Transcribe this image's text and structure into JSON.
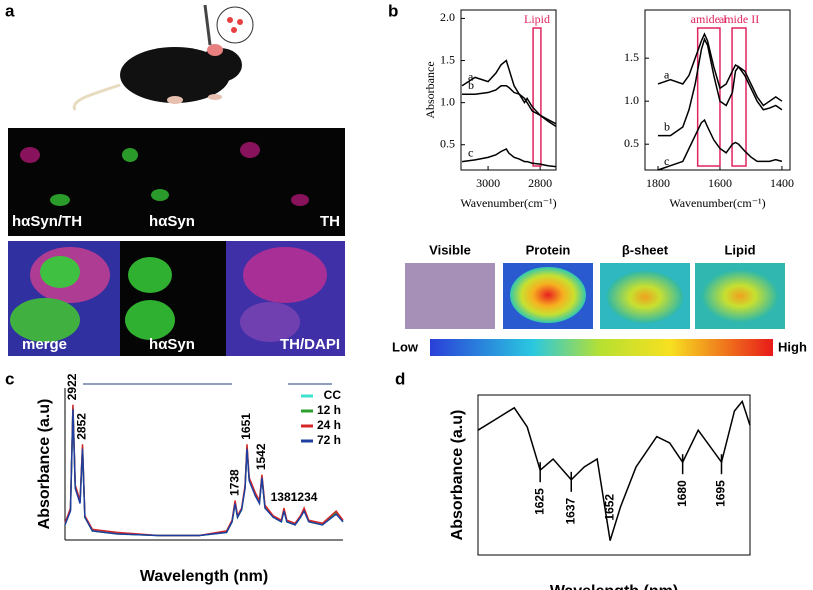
{
  "panel_labels": [
    "a",
    "b",
    "c",
    "d"
  ],
  "microscopy": {
    "top_row": [
      "hαSyn/TH",
      "hαSyn",
      "TH"
    ],
    "bottom_row": [
      "merge",
      "hαSyn",
      "TH/DAPI"
    ]
  },
  "ir_maps": {
    "titles": [
      "Visible",
      "Protein",
      "β-sheet",
      "Lipid"
    ],
    "scale_low": "Low",
    "scale_high": "High"
  },
  "chart_data": [
    {
      "type": "line",
      "xlabel": "Wavenumber(cm⁻¹)",
      "ylabel": "Absorbance",
      "x": [
        3100,
        3050,
        3000,
        2970,
        2950,
        2930,
        2920,
        2900,
        2880,
        2860,
        2850,
        2830,
        2800,
        2770,
        2740
      ],
      "xlim": [
        3104,
        2739
      ],
      "xticks": [
        3000,
        2800
      ],
      "ylim": [
        0.2,
        2.1
      ],
      "yticks": [
        0.5,
        {
          "value": 1,
          "label": "1.0"
        },
        1.5,
        {
          "value": 2,
          "label": "2.0"
        }
      ],
      "regions": [
        {
          "label": "Lipid",
          "range": [
            2827,
            2797
          ],
          "color": "#e0245e"
        }
      ],
      "series": [
        {
          "name": "a",
          "color": "#000000",
          "values": [
            1.2,
            1.3,
            1.25,
            1.35,
            1.45,
            1.5,
            1.4,
            1.2,
            1.1,
            1.0,
            1.05,
            0.95,
            0.85,
            0.8,
            0.75
          ]
        },
        {
          "name": "b",
          "color": "#000000",
          "values": [
            1.1,
            1.1,
            1.12,
            1.15,
            1.2,
            1.2,
            1.18,
            1.12,
            1.1,
            1.05,
            1.0,
            0.9,
            0.85,
            0.78,
            0.72
          ]
        },
        {
          "name": "c",
          "color": "#000000",
          "values": [
            0.3,
            0.32,
            0.35,
            0.38,
            0.42,
            0.45,
            0.4,
            0.35,
            0.33,
            0.3,
            0.3,
            0.28,
            0.27,
            0.25,
            0.24
          ]
        }
      ]
    },
    {
      "type": "line",
      "xlabel": "Wavenumber(cm⁻¹)",
      "x": [
        1800,
        1760,
        1720,
        1700,
        1680,
        1660,
        1650,
        1640,
        1620,
        1600,
        1580,
        1560,
        1550,
        1540,
        1520,
        1500,
        1480,
        1460,
        1440,
        1420,
        1400
      ],
      "xlim": [
        1842,
        1374
      ],
      "xticks": [
        1800,
        1600,
        1400
      ],
      "ylim": [
        0.2,
        2.06
      ],
      "yticks": [
        0.5,
        {
          "value": 1,
          "label": "1.0"
        },
        1.5
      ],
      "regions": [
        {
          "label": "amide I",
          "range": [
            1672,
            1600
          ],
          "color": "#e0245e"
        },
        {
          "label": "amide II",
          "range": [
            1561,
            1516
          ],
          "color": "#e0245e"
        }
      ],
      "series": [
        {
          "name": "a",
          "color": "#000000",
          "values": [
            1.2,
            1.25,
            1.2,
            1.3,
            1.5,
            1.7,
            1.78,
            1.7,
            1.4,
            1.15,
            1.2,
            1.35,
            1.42,
            1.4,
            1.35,
            1.2,
            1.05,
            0.95,
            1.0,
            1.05,
            1.0
          ]
        },
        {
          "name": "b",
          "color": "#000000",
          "values": [
            0.6,
            0.6,
            0.7,
            0.9,
            1.2,
            1.6,
            1.72,
            1.65,
            1.3,
            1.0,
            0.95,
            1.1,
            1.35,
            1.4,
            1.3,
            1.15,
            1.0,
            0.9,
            0.92,
            0.95,
            0.9
          ]
        },
        {
          "name": "c",
          "color": "#000000",
          "values": [
            0.2,
            0.25,
            0.3,
            0.45,
            0.6,
            0.75,
            0.78,
            0.7,
            0.55,
            0.45,
            0.4,
            0.5,
            0.52,
            0.5,
            0.42,
            0.35,
            0.3,
            0.3,
            0.3,
            0.32,
            0.3
          ]
        }
      ]
    },
    {
      "type": "line",
      "xlabel": "Wavelength (nm)",
      "ylabel": "Absorbance (a.u)",
      "legend": "top-right",
      "x": [
        2980,
        2940,
        2922,
        2905,
        2870,
        2852,
        2835,
        2780,
        2600,
        2300,
        2000,
        1800,
        1760,
        1738,
        1720,
        1690,
        1665,
        1651,
        1635,
        1590,
        1560,
        1542,
        1520,
        1460,
        1400,
        1381,
        1360,
        1300,
        1260,
        1234,
        1200,
        1100,
        1000,
        950
      ],
      "xlim": [
        2980,
        950
      ],
      "ylim": [
        0,
        1
      ],
      "peaks": [
        2922,
        2852,
        1738,
        1651,
        1542,
        1381,
        1234
      ],
      "series": [
        {
          "name": "CC",
          "color": "#40e0d0",
          "values": [
            0.1,
            0.2,
            0.88,
            0.35,
            0.25,
            0.62,
            0.15,
            0.06,
            0.04,
            0.03,
            0.03,
            0.05,
            0.12,
            0.25,
            0.15,
            0.2,
            0.35,
            0.62,
            0.4,
            0.3,
            0.25,
            0.42,
            0.22,
            0.15,
            0.12,
            0.2,
            0.12,
            0.1,
            0.15,
            0.2,
            0.12,
            0.1,
            0.18,
            0.12
          ]
        },
        {
          "name": "12 h",
          "color": "#2ca02c",
          "values": [
            0.1,
            0.2,
            0.87,
            0.34,
            0.25,
            0.61,
            0.15,
            0.06,
            0.04,
            0.03,
            0.03,
            0.05,
            0.12,
            0.24,
            0.15,
            0.2,
            0.35,
            0.61,
            0.4,
            0.3,
            0.25,
            0.41,
            0.22,
            0.15,
            0.12,
            0.2,
            0.12,
            0.1,
            0.15,
            0.2,
            0.12,
            0.1,
            0.18,
            0.12
          ]
        },
        {
          "name": "24 h",
          "color": "#d62728",
          "values": [
            0.11,
            0.21,
            0.89,
            0.36,
            0.26,
            0.63,
            0.16,
            0.07,
            0.05,
            0.03,
            0.03,
            0.06,
            0.13,
            0.26,
            0.16,
            0.21,
            0.36,
            0.63,
            0.41,
            0.31,
            0.26,
            0.43,
            0.23,
            0.16,
            0.13,
            0.21,
            0.13,
            0.11,
            0.16,
            0.21,
            0.13,
            0.11,
            0.19,
            0.13
          ]
        },
        {
          "name": "72 h",
          "color": "#1f3fa0",
          "values": [
            0.1,
            0.19,
            0.86,
            0.34,
            0.24,
            0.6,
            0.15,
            0.06,
            0.04,
            0.03,
            0.03,
            0.05,
            0.12,
            0.24,
            0.15,
            0.2,
            0.34,
            0.6,
            0.39,
            0.29,
            0.24,
            0.41,
            0.21,
            0.15,
            0.12,
            0.19,
            0.12,
            0.1,
            0.15,
            0.19,
            0.12,
            0.1,
            0.17,
            0.12
          ]
        }
      ]
    },
    {
      "type": "line",
      "xlabel": "Wavelength (nm)",
      "ylabel": "Absorbance (a.u)",
      "x": [
        1601,
        1608,
        1615,
        1620,
        1625,
        1630,
        1637,
        1642,
        1647,
        1652,
        1656,
        1662,
        1670,
        1675,
        1680,
        1686,
        1695,
        1700,
        1703,
        1706
      ],
      "xlim": [
        1601,
        1706
      ],
      "ylim": [
        0,
        1
      ],
      "minima": [
        1625,
        1637,
        1652,
        1680,
        1695
      ],
      "series": [
        {
          "color": "#000000",
          "values": [
            0.78,
            0.85,
            0.92,
            0.8,
            0.53,
            0.6,
            0.47,
            0.55,
            0.6,
            0.09,
            0.3,
            0.55,
            0.74,
            0.7,
            0.58,
            0.78,
            0.58,
            0.9,
            0.96,
            0.81
          ]
        }
      ]
    }
  ]
}
